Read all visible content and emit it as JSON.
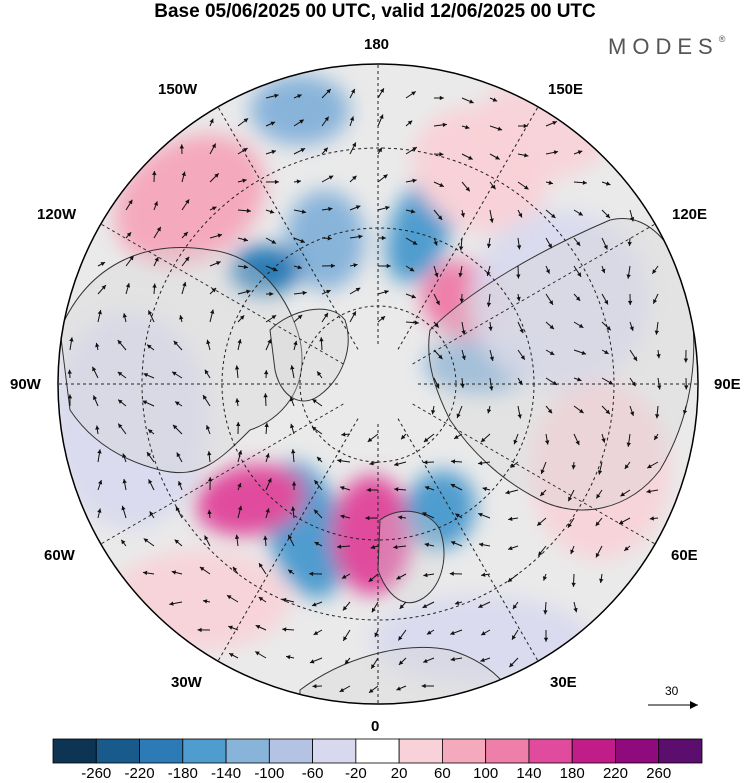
{
  "header": {
    "title": "Base 05/06/2025 00 UTC, valid 12/06/2025 00 UTC",
    "brand": "MODES",
    "brand_mark": "®"
  },
  "map": {
    "projection": "north-polar-stereographic",
    "center_longitude_bottom": "0",
    "longitude_labels": {
      "top": "180",
      "bottom": "0",
      "left": "90W",
      "right": "90E",
      "upper_left_1": "150W",
      "upper_left_2": "120W",
      "lower_left_1": "60W",
      "lower_left_2": "30W",
      "upper_right_1": "150E",
      "upper_right_2": "120E",
      "lower_right_1": "60E",
      "lower_right_2": "30E"
    },
    "reference_vector_value": "30",
    "anomalies": [
      {
        "region": "north-atlantic-west",
        "value": -160
      },
      {
        "region": "north-atlantic-east",
        "value": 180
      },
      {
        "region": "scandinavia",
        "value": -140
      },
      {
        "region": "barents",
        "value": -120
      },
      {
        "region": "central-siberia",
        "value": 140
      },
      {
        "region": "laptev",
        "value": -140
      },
      {
        "region": "east-siberian",
        "value": -120
      },
      {
        "region": "bering",
        "value": -100
      },
      {
        "region": "north-america-west",
        "value": -180
      },
      {
        "region": "labrador",
        "value": 160
      },
      {
        "region": "alaska",
        "value": 80
      },
      {
        "region": "north-pacific",
        "value": 60
      }
    ]
  },
  "colorbar": {
    "ticks": [
      "-260",
      "-220",
      "-180",
      "-140",
      "-100",
      "-60",
      "-20",
      "20",
      "60",
      "100",
      "140",
      "180",
      "220",
      "260"
    ],
    "colors": [
      "#0d3553",
      "#195a8c",
      "#2c7bb6",
      "#4f9ccf",
      "#88b4da",
      "#b4c3e4",
      "#d8d9ee",
      "#ffffff",
      "#f8d2d8",
      "#f5a9bd",
      "#ee7fa9",
      "#e04b9d",
      "#c01d88",
      "#8e0a7d",
      "#5c0e6e"
    ]
  }
}
